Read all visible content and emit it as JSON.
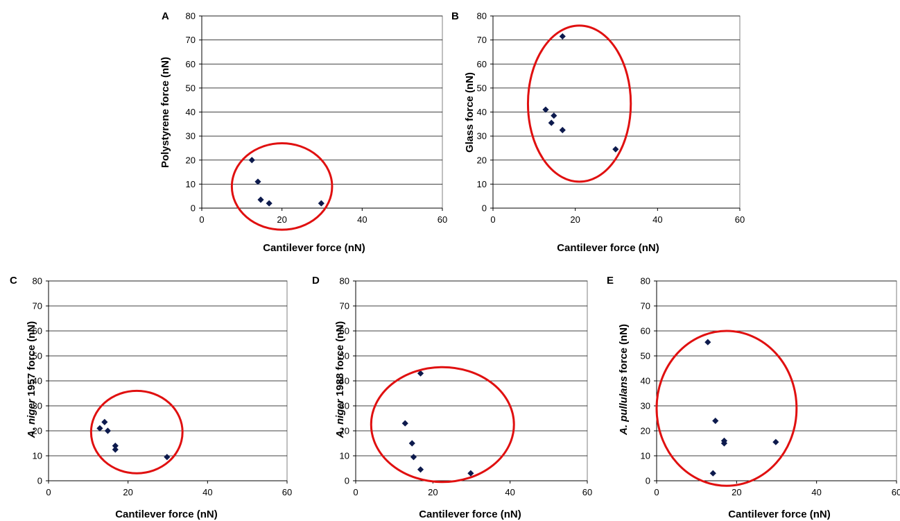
{
  "chart_data": [
    {
      "panel": "A",
      "type": "scatter",
      "xlabel": "Cantilever force (nN)",
      "ylabel": "Polystyrene force (nN)",
      "xlim": [
        0,
        60
      ],
      "ylim": [
        0,
        80
      ],
      "xticks": [
        0,
        20,
        40,
        60
      ],
      "yticks": [
        0,
        10,
        20,
        30,
        40,
        50,
        60,
        70,
        80
      ],
      "grid": "horizontal",
      "points": [
        {
          "x": 12.5,
          "y": 20
        },
        {
          "x": 14.0,
          "y": 11
        },
        {
          "x": 14.7,
          "y": 3.5
        },
        {
          "x": 16.8,
          "y": 2
        },
        {
          "x": 29.8,
          "y": 2
        }
      ],
      "annotation": {
        "shape": "ellipse",
        "color": "#e01010",
        "cx": 20,
        "cy": 9,
        "rx": 12.5,
        "ry": 18
      }
    },
    {
      "panel": "B",
      "type": "scatter",
      "xlabel": "Cantilever force (nN)",
      "ylabel": "Glass force (nN)",
      "xlim": [
        0,
        60
      ],
      "ylim": [
        0,
        80
      ],
      "xticks": [
        0,
        20,
        40,
        60
      ],
      "yticks": [
        0,
        10,
        20,
        30,
        40,
        50,
        60,
        70,
        80
      ],
      "grid": "horizontal",
      "points": [
        {
          "x": 16.9,
          "y": 71.5
        },
        {
          "x": 12.8,
          "y": 41
        },
        {
          "x": 14.8,
          "y": 38.5
        },
        {
          "x": 14.2,
          "y": 35.5
        },
        {
          "x": 16.9,
          "y": 32.5
        },
        {
          "x": 29.8,
          "y": 24.5
        }
      ],
      "annotation": {
        "shape": "ellipse",
        "color": "#e01010",
        "cx": 21,
        "cy": 43.5,
        "rx": 12.5,
        "ry": 32.5
      }
    },
    {
      "panel": "C",
      "type": "scatter",
      "xlabel": "Cantilever force (nN)",
      "ylabel_italic": "A. niger",
      "ylabel_rest": " 1957 force (nN)",
      "xlim": [
        0,
        60
      ],
      "ylim": [
        0,
        80
      ],
      "xticks": [
        0,
        20,
        40,
        60
      ],
      "yticks": [
        0,
        10,
        20,
        30,
        40,
        50,
        60,
        70,
        80
      ],
      "grid": "horizontal",
      "points": [
        {
          "x": 12.9,
          "y": 21
        },
        {
          "x": 14.1,
          "y": 23.5
        },
        {
          "x": 14.9,
          "y": 20
        },
        {
          "x": 16.8,
          "y": 14
        },
        {
          "x": 16.8,
          "y": 12.5
        },
        {
          "x": 29.8,
          "y": 9.5
        }
      ],
      "annotation": {
        "shape": "ellipse",
        "color": "#e01010",
        "cx": 22.2,
        "cy": 19.5,
        "rx": 11.5,
        "ry": 16.5
      }
    },
    {
      "panel": "D",
      "type": "scatter",
      "xlabel": "Cantilever force (nN)",
      "ylabel_italic": "A. niger",
      "ylabel_rest": " 1988 force (nN)",
      "xlim": [
        0,
        60
      ],
      "ylim": [
        0,
        80
      ],
      "xticks": [
        0,
        20,
        40,
        60
      ],
      "yticks": [
        0,
        10,
        20,
        30,
        40,
        50,
        60,
        70,
        80
      ],
      "grid": "horizontal",
      "points": [
        {
          "x": 16.8,
          "y": 43
        },
        {
          "x": 12.8,
          "y": 23
        },
        {
          "x": 14.6,
          "y": 15
        },
        {
          "x": 15.0,
          "y": 9.5
        },
        {
          "x": 16.8,
          "y": 4.5
        },
        {
          "x": 29.8,
          "y": 3
        }
      ],
      "annotation": {
        "shape": "ellipse",
        "color": "#e01010",
        "cx": 22.5,
        "cy": 22.5,
        "rx": 18.5,
        "ry": 23
      }
    },
    {
      "panel": "E",
      "type": "scatter",
      "xlabel": "Cantilever force (nN)",
      "ylabel_italic": "A. pullulans",
      "ylabel_rest": " force (nN)",
      "xlim": [
        0,
        60
      ],
      "ylim": [
        0,
        80
      ],
      "xticks": [
        0,
        20,
        40,
        60
      ],
      "yticks": [
        0,
        10,
        20,
        30,
        40,
        50,
        60,
        70,
        80
      ],
      "grid": "horizontal",
      "points": [
        {
          "x": 12.8,
          "y": 55.5
        },
        {
          "x": 14.7,
          "y": 24
        },
        {
          "x": 16.9,
          "y": 16
        },
        {
          "x": 16.9,
          "y": 15
        },
        {
          "x": 29.8,
          "y": 15.5
        },
        {
          "x": 14.1,
          "y": 3
        }
      ],
      "annotation": {
        "shape": "ellipse",
        "color": "#e01010",
        "cx": 17.5,
        "cy": 29,
        "rx": 17.5,
        "ry": 31
      }
    }
  ]
}
